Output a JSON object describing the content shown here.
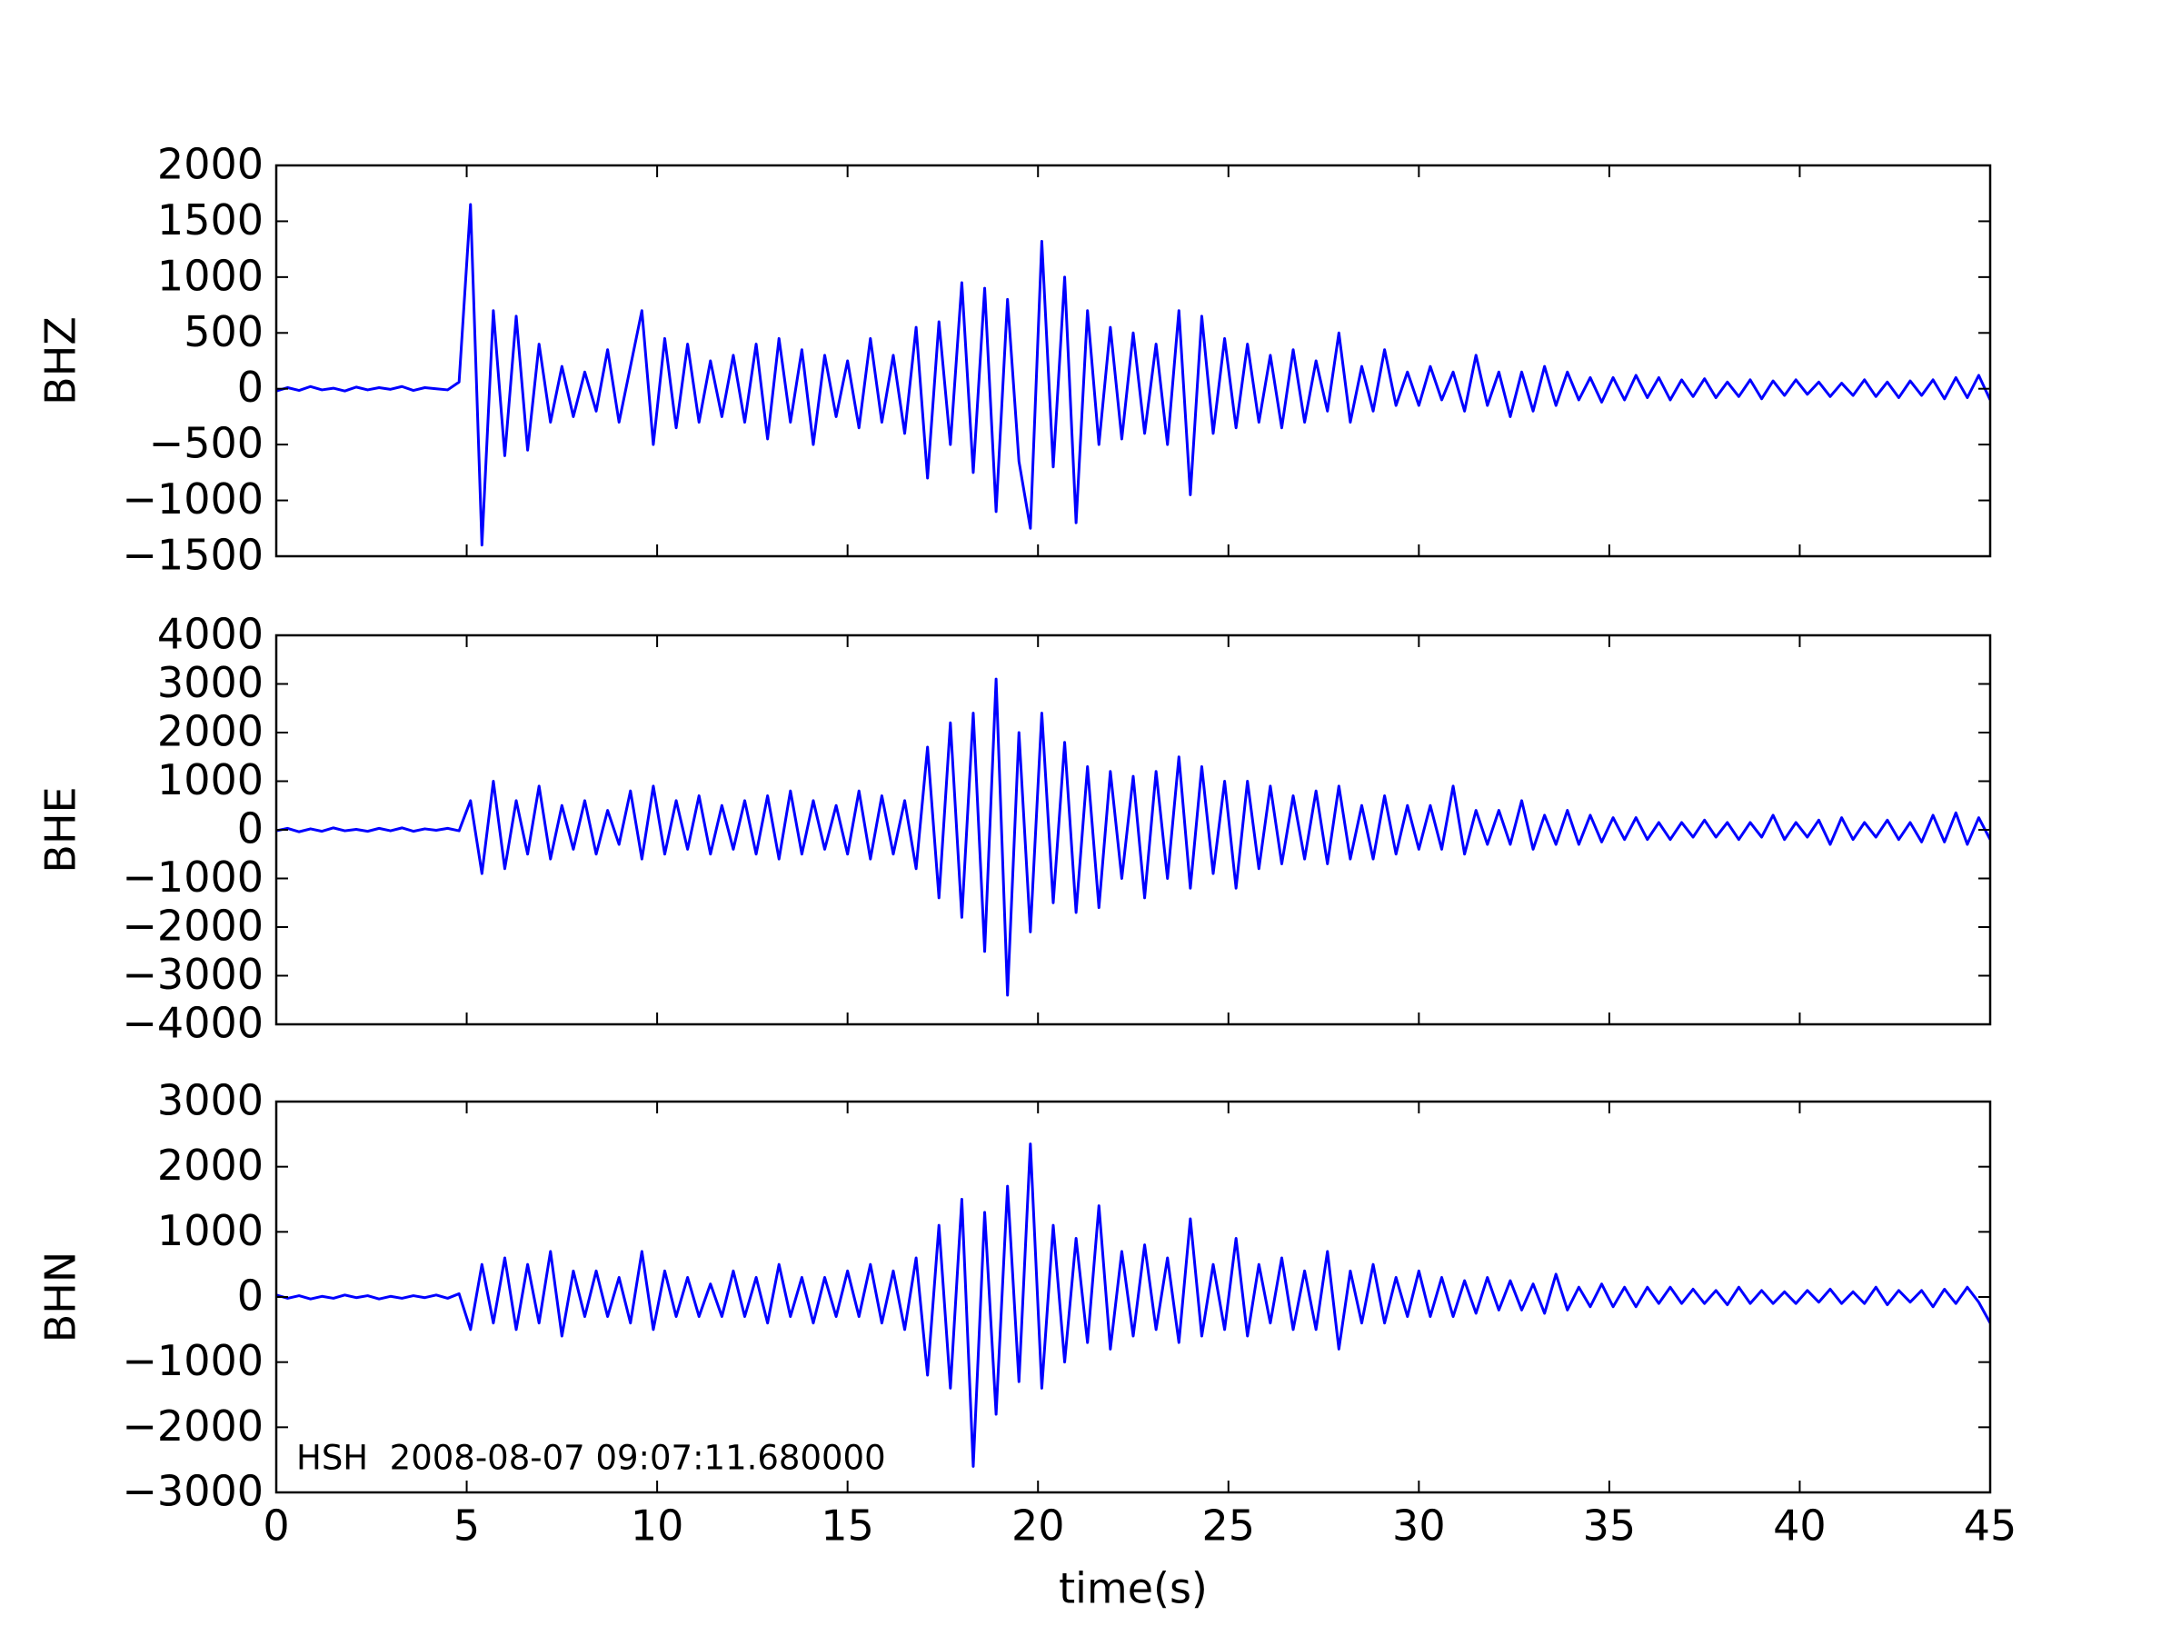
{
  "chart_data": [
    {
      "type": "line",
      "ylabel": "BHZ",
      "color": "#0000ff",
      "xlim": [
        0,
        45
      ],
      "ylim": [
        -1500,
        2000
      ],
      "yticks": [
        2000,
        1500,
        1000,
        500,
        0,
        {
          "value": -500,
          "label": "−500"
        },
        {
          "value": -1000,
          "label": "−1000"
        },
        {
          "value": -1500,
          "label": "−1500"
        }
      ],
      "x": [
        0,
        0.3,
        0.6,
        0.9,
        1.2,
        1.5,
        1.8,
        2.1,
        2.4,
        2.7,
        3,
        3.3,
        3.6,
        3.9,
        4.2,
        4.5,
        4.8,
        5.1,
        5.4,
        5.7,
        6,
        6.3,
        6.6,
        6.9,
        7.2,
        7.5,
        7.8,
        8.1,
        8.4,
        8.7,
        9,
        9.3,
        9.6,
        9.9,
        10.2,
        10.5,
        10.8,
        11.1,
        11.4,
        11.7,
        12,
        12.3,
        12.6,
        12.9,
        13.2,
        13.5,
        13.8,
        14.1,
        14.4,
        14.7,
        15,
        15.3,
        15.6,
        15.9,
        16.2,
        16.5,
        16.8,
        17.1,
        17.4,
        17.7,
        18,
        18.3,
        18.6,
        18.9,
        19.2,
        19.5,
        19.8,
        20.1,
        20.4,
        20.7,
        21,
        21.3,
        21.6,
        21.9,
        22.2,
        22.5,
        22.8,
        23.1,
        23.4,
        23.7,
        24,
        24.3,
        24.6,
        24.9,
        25.2,
        25.5,
        25.8,
        26.1,
        26.4,
        26.7,
        27,
        27.3,
        27.6,
        27.9,
        28.2,
        28.5,
        28.8,
        29.1,
        29.4,
        29.7,
        30,
        30.3,
        30.6,
        30.9,
        31.2,
        31.5,
        31.8,
        32.1,
        32.4,
        32.7,
        33,
        33.3,
        33.6,
        33.9,
        34.2,
        34.5,
        34.8,
        35.1,
        35.4,
        35.7,
        36,
        36.3,
        36.6,
        36.9,
        37.2,
        37.5,
        37.8,
        38.1,
        38.4,
        38.7,
        39,
        39.3,
        39.6,
        39.9,
        40.2,
        40.5,
        40.8,
        41.1,
        41.4,
        41.7,
        42,
        42.3,
        42.6,
        42.9,
        43.2,
        43.5,
        43.8,
        44.1,
        44.4,
        44.7,
        45
      ],
      "values": [
        -20,
        10,
        -15,
        20,
        -10,
        5,
        -20,
        15,
        -10,
        10,
        -5,
        20,
        -15,
        10,
        0,
        -10,
        60,
        1650,
        -1400,
        700,
        -600,
        650,
        -550,
        400,
        -300,
        200,
        -250,
        150,
        -200,
        350,
        -300,
        200,
        700,
        -500,
        450,
        -350,
        400,
        -300,
        250,
        -250,
        300,
        -300,
        400,
        -450,
        450,
        -300,
        350,
        -500,
        300,
        -250,
        250,
        -350,
        450,
        -300,
        300,
        -400,
        550,
        -800,
        600,
        -500,
        950,
        -750,
        900,
        -1100,
        800,
        -650,
        -1250,
        1320,
        -700,
        1000,
        -1200,
        700,
        -500,
        550,
        -450,
        500,
        -400,
        400,
        -500,
        700,
        -950,
        650,
        -400,
        450,
        -350,
        400,
        -300,
        300,
        -350,
        350,
        -300,
        250,
        -200,
        500,
        -300,
        200,
        -200,
        350,
        -150,
        150,
        -150,
        200,
        -100,
        150,
        -200,
        300,
        -150,
        150,
        -250,
        150,
        -200,
        200,
        -150,
        150,
        -100,
        100,
        -120,
        100,
        -100,
        120,
        -80,
        100,
        -100,
        80,
        -70,
        90,
        -80,
        60,
        -70,
        80,
        -90,
        70,
        -60,
        80,
        -50,
        60,
        -70,
        50,
        -60,
        80,
        -70,
        60,
        -80,
        70,
        -60,
        80,
        -90,
        100,
        -80,
        120,
        -100
      ]
    },
    {
      "type": "line",
      "ylabel": "BHE",
      "color": "#0000ff",
      "xlim": [
        0,
        45
      ],
      "ylim": [
        -4000,
        4000
      ],
      "yticks": [
        4000,
        3000,
        2000,
        1000,
        0,
        {
          "value": -1000,
          "label": "−1000"
        },
        {
          "value": -2000,
          "label": "−2000"
        },
        {
          "value": -3000,
          "label": "−3000"
        },
        {
          "value": -4000,
          "label": "−4000"
        }
      ],
      "x": [
        0,
        0.3,
        0.6,
        0.9,
        1.2,
        1.5,
        1.8,
        2.1,
        2.4,
        2.7,
        3,
        3.3,
        3.6,
        3.9,
        4.2,
        4.5,
        4.8,
        5.1,
        5.4,
        5.7,
        6,
        6.3,
        6.6,
        6.9,
        7.2,
        7.5,
        7.8,
        8.1,
        8.4,
        8.7,
        9,
        9.3,
        9.6,
        9.9,
        10.2,
        10.5,
        10.8,
        11.1,
        11.4,
        11.7,
        12,
        12.3,
        12.6,
        12.9,
        13.2,
        13.5,
        13.8,
        14.1,
        14.4,
        14.7,
        15,
        15.3,
        15.6,
        15.9,
        16.2,
        16.5,
        16.8,
        17.1,
        17.4,
        17.7,
        18,
        18.3,
        18.6,
        18.9,
        19.2,
        19.5,
        19.8,
        20.1,
        20.4,
        20.7,
        21,
        21.3,
        21.6,
        21.9,
        22.2,
        22.5,
        22.8,
        23.1,
        23.4,
        23.7,
        24,
        24.3,
        24.6,
        24.9,
        25.2,
        25.5,
        25.8,
        26.1,
        26.4,
        26.7,
        27,
        27.3,
        27.6,
        27.9,
        28.2,
        28.5,
        28.8,
        29.1,
        29.4,
        29.7,
        30,
        30.3,
        30.6,
        30.9,
        31.2,
        31.5,
        31.8,
        32.1,
        32.4,
        32.7,
        33,
        33.3,
        33.6,
        33.9,
        34.2,
        34.5,
        34.8,
        35.1,
        35.4,
        35.7,
        36,
        36.3,
        36.6,
        36.9,
        37.2,
        37.5,
        37.8,
        38.1,
        38.4,
        38.7,
        39,
        39.3,
        39.6,
        39.9,
        40.2,
        40.5,
        40.8,
        41.1,
        41.4,
        41.7,
        42,
        42.3,
        42.6,
        42.9,
        43.2,
        43.5,
        43.8,
        44.1,
        44.4,
        44.7,
        45
      ],
      "values": [
        -20,
        30,
        -40,
        20,
        -30,
        40,
        -20,
        10,
        -30,
        30,
        -20,
        40,
        -30,
        20,
        -10,
        30,
        -20,
        600,
        -900,
        1000,
        -800,
        600,
        -500,
        900,
        -600,
        500,
        -400,
        600,
        -500,
        400,
        -300,
        800,
        -600,
        900,
        -500,
        600,
        -400,
        700,
        -500,
        500,
        -400,
        600,
        -500,
        700,
        -600,
        800,
        -500,
        600,
        -400,
        500,
        -500,
        800,
        -600,
        700,
        -500,
        600,
        -800,
        1700,
        -1400,
        2200,
        -1800,
        2400,
        -2500,
        3100,
        -3400,
        2000,
        -2100,
        2400,
        -1500,
        1800,
        -1700,
        1300,
        -1600,
        1200,
        -1000,
        1100,
        -1400,
        1200,
        -1000,
        1500,
        -1200,
        1300,
        -900,
        1000,
        -1200,
        1000,
        -800,
        900,
        -700,
        700,
        -600,
        800,
        -700,
        900,
        -600,
        500,
        -600,
        700,
        -500,
        500,
        -400,
        500,
        -400,
        900,
        -500,
        400,
        -300,
        400,
        -300,
        600,
        -400,
        300,
        -300,
        400,
        -300,
        300,
        -250,
        250,
        -200,
        250,
        -200,
        150,
        -200,
        150,
        -150,
        200,
        -150,
        150,
        -200,
        150,
        -150,
        300,
        -200,
        150,
        -150,
        200,
        -300,
        250,
        -200,
        150,
        -150,
        200,
        -200,
        150,
        -250,
        300,
        -250,
        350,
        -300,
        250,
        -200
      ]
    },
    {
      "type": "line",
      "ylabel": "BHN",
      "xlabel": "time(s)",
      "annotation": "HSH  2008-08-07 09:07:11.680000",
      "color": "#0000ff",
      "xlim": [
        0,
        45
      ],
      "ylim": [
        -3000,
        3000
      ],
      "xticks": [
        0,
        5,
        10,
        15,
        20,
        25,
        30,
        35,
        40,
        45
      ],
      "yticks": [
        3000,
        2000,
        1000,
        0,
        {
          "value": -1000,
          "label": "−1000"
        },
        {
          "value": -2000,
          "label": "−2000"
        },
        {
          "value": -3000,
          "label": "−3000"
        }
      ],
      "x": [
        0,
        0.3,
        0.6,
        0.9,
        1.2,
        1.5,
        1.8,
        2.1,
        2.4,
        2.7,
        3,
        3.3,
        3.6,
        3.9,
        4.2,
        4.5,
        4.8,
        5.1,
        5.4,
        5.7,
        6,
        6.3,
        6.6,
        6.9,
        7.2,
        7.5,
        7.8,
        8.1,
        8.4,
        8.7,
        9,
        9.3,
        9.6,
        9.9,
        10.2,
        10.5,
        10.8,
        11.1,
        11.4,
        11.7,
        12,
        12.3,
        12.6,
        12.9,
        13.2,
        13.5,
        13.8,
        14.1,
        14.4,
        14.7,
        15,
        15.3,
        15.6,
        15.9,
        16.2,
        16.5,
        16.8,
        17.1,
        17.4,
        17.7,
        18,
        18.3,
        18.6,
        18.9,
        19.2,
        19.5,
        19.8,
        20.1,
        20.4,
        20.7,
        21,
        21.3,
        21.6,
        21.9,
        22.2,
        22.5,
        22.8,
        23.1,
        23.4,
        23.7,
        24,
        24.3,
        24.6,
        24.9,
        25.2,
        25.5,
        25.8,
        26.1,
        26.4,
        26.7,
        27,
        27.3,
        27.6,
        27.9,
        28.2,
        28.5,
        28.8,
        29.1,
        29.4,
        29.7,
        30,
        30.3,
        30.6,
        30.9,
        31.2,
        31.5,
        31.8,
        32.1,
        32.4,
        32.7,
        33,
        33.3,
        33.6,
        33.9,
        34.2,
        34.5,
        34.8,
        35.1,
        35.4,
        35.7,
        36,
        36.3,
        36.6,
        36.9,
        37.2,
        37.5,
        37.8,
        38.1,
        38.4,
        38.7,
        39,
        39.3,
        39.6,
        39.9,
        40.2,
        40.5,
        40.8,
        41.1,
        41.4,
        41.7,
        42,
        42.3,
        42.6,
        42.9,
        43.2,
        43.5,
        43.8,
        44.1,
        44.4,
        44.7,
        45
      ],
      "values": [
        30,
        -20,
        20,
        -30,
        10,
        -20,
        30,
        -10,
        20,
        -30,
        10,
        -20,
        20,
        -10,
        30,
        -20,
        50,
        -500,
        500,
        -400,
        600,
        -500,
        500,
        -400,
        700,
        -600,
        400,
        -300,
        400,
        -300,
        300,
        -400,
        700,
        -500,
        400,
        -300,
        300,
        -300,
        200,
        -300,
        400,
        -300,
        300,
        -400,
        500,
        -300,
        300,
        -400,
        300,
        -300,
        400,
        -300,
        500,
        -400,
        400,
        -500,
        600,
        -1200,
        1100,
        -1400,
        1500,
        -2600,
        1300,
        -1800,
        1700,
        -1300,
        2350,
        -1400,
        1100,
        -1000,
        900,
        -700,
        1400,
        -800,
        700,
        -600,
        800,
        -500,
        600,
        -700,
        1200,
        -600,
        500,
        -500,
        900,
        -600,
        500,
        -400,
        600,
        -500,
        400,
        -500,
        700,
        -800,
        400,
        -400,
        500,
        -400,
        300,
        -300,
        400,
        -300,
        300,
        -300,
        250,
        -250,
        300,
        -200,
        250,
        -200,
        200,
        -250,
        350,
        -200,
        150,
        -150,
        200,
        -150,
        150,
        -150,
        150,
        -100,
        150,
        -100,
        120,
        -100,
        100,
        -120,
        150,
        -100,
        100,
        -100,
        80,
        -100,
        100,
        -80,
        120,
        -100,
        80,
        -100,
        150,
        -120,
        100,
        -80,
        100,
        -150,
        120,
        -100,
        150,
        -80,
        -400
      ]
    }
  ]
}
